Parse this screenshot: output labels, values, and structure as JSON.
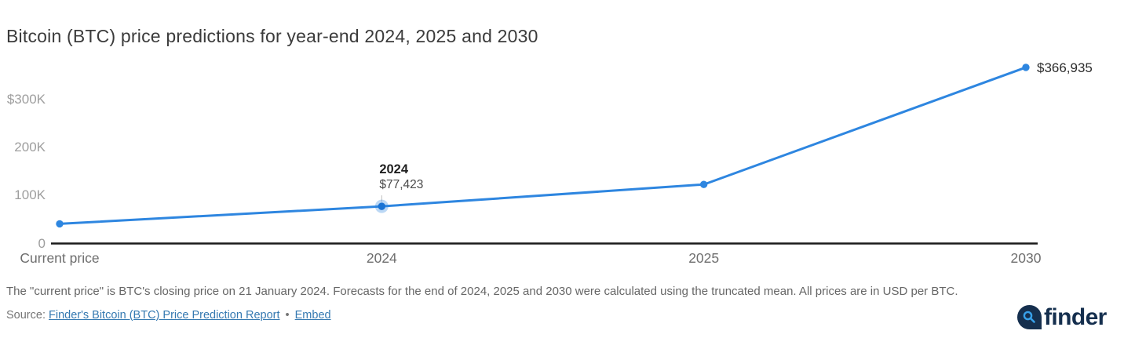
{
  "title": "Bitcoin (BTC) price predictions for year-end 2024, 2025 and 2030",
  "chart_data": {
    "type": "line",
    "title": "Bitcoin (BTC) price predictions for year-end 2024, 2025 and 2030",
    "categories": [
      "Current price",
      "2024",
      "2025",
      "2030"
    ],
    "values": [
      41000,
      77423,
      123000,
      366935
    ],
    "value_labels": [
      "",
      "$77,423",
      "",
      "$366,935"
    ],
    "yticks": [
      {
        "label": "$300K",
        "value": 300000
      },
      {
        "label": "200K",
        "value": 200000
      },
      {
        "label": "100K",
        "value": 100000
      },
      {
        "label": "0",
        "value": 0
      }
    ],
    "ylim": [
      0,
      380000
    ],
    "xlabel": "",
    "ylabel": "",
    "grid": false,
    "legend": "none",
    "line_color": "#2e86e0",
    "highlight_color": "#1a73d4",
    "axis_color": "#1a1a1a",
    "annotated_point": {
      "category": "2024",
      "label": "2024",
      "value_label": "$77,423"
    }
  },
  "annotation": {
    "year": "2024",
    "price": "$77,423"
  },
  "endpoint": {
    "price": "$366,935"
  },
  "footnote": "The \"current price\" is BTC's closing price on 21 January 2024. Forecasts for the end of 2024, 2025 and 2030 were calculated using the truncated mean. All prices are in USD per BTC.",
  "source": {
    "prefix": "Source:",
    "report_link": "Finder's Bitcoin (BTC) Price Prediction Report",
    "separator": "•",
    "embed_link": "Embed"
  },
  "logo": {
    "text": "finder",
    "icon": "magnifier-icon",
    "navy": "#152f4e",
    "accent": "#38a1ea"
  }
}
